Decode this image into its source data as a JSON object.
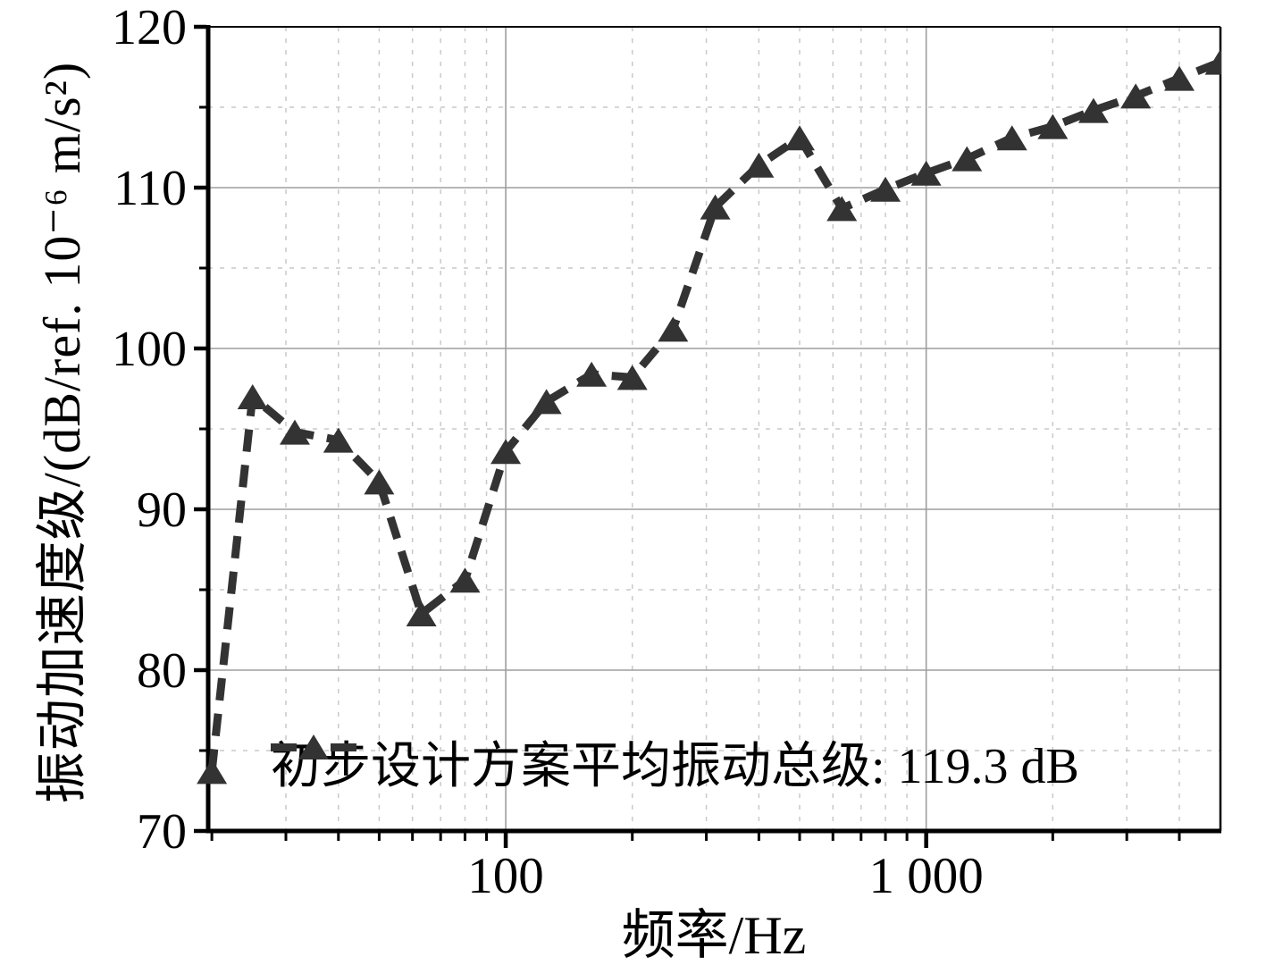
{
  "chart_data": {
    "type": "line",
    "xlabel": "频率/Hz",
    "ylabel": "振动加速度级/(dB/ref. 10⁻⁶ m/s²)",
    "legend_label": "初步设计方案平均振动总级: 119.3 dB",
    "legend_position": "inside lower-center",
    "xscale": "log",
    "xlim": [
      19.6,
      5010
    ],
    "ylim": [
      70,
      120
    ],
    "grid": "major solid, minor dashed",
    "yticks": [
      70,
      80,
      90,
      100,
      110,
      120
    ],
    "minor_yticks": [
      75,
      85,
      95,
      105,
      115
    ],
    "xticks": [
      {
        "value": 100,
        "label": "100"
      },
      {
        "value": 1000,
        "label": "1 000"
      }
    ],
    "minor_xticks": [
      20,
      30,
      40,
      50,
      60,
      70,
      80,
      90,
      200,
      300,
      400,
      500,
      600,
      700,
      800,
      900,
      2000,
      3000,
      4000
    ],
    "categories": [
      20,
      25,
      31.5,
      40,
      50,
      63,
      80,
      100,
      125,
      160,
      200,
      250,
      315,
      400,
      500,
      630,
      800,
      1000,
      1250,
      1600,
      2000,
      2500,
      3150,
      4000,
      5000
    ],
    "series": [
      {
        "name": "初步设计方案平均振动总级: 119.3 dB",
        "overall_level_dB": "119.3 dB",
        "values": [
          73.7,
          97.0,
          94.8,
          94.3,
          91.7,
          83.5,
          85.6,
          93.6,
          96.7,
          98.4,
          98.2,
          101.2,
          108.8,
          111.4,
          113.1,
          108.7,
          109.9,
          110.9,
          111.8,
          113.1,
          113.8,
          114.8,
          115.7,
          116.8,
          117.8
        ]
      }
    ],
    "colors": {
      "line": "#333333",
      "marker": "#333333",
      "major_grid": "#9e9e9e",
      "minor_grid": "#c9c9c9",
      "axis": "#000000",
      "background": "#ffffff"
    }
  }
}
